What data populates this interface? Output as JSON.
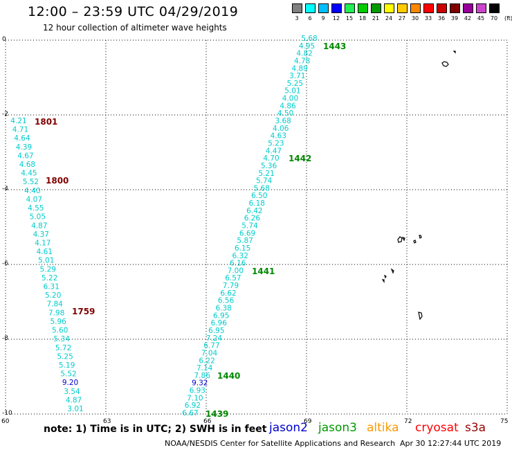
{
  "header": {
    "title": "12:00 – 23:59 UTC 04/29/2019",
    "subtitle": "12 hour collection of altimeter wave heights"
  },
  "color_scale": {
    "swatches": [
      {
        "label": "3",
        "color": "#808080"
      },
      {
        "label": "6",
        "color": "#00ffff"
      },
      {
        "label": "9",
        "color": "#00bfff"
      },
      {
        "label": "12",
        "color": "#0000ff"
      },
      {
        "label": "15",
        "color": "#22ee55"
      },
      {
        "label": "18",
        "color": "#00cc00"
      },
      {
        "label": "21",
        "color": "#009900"
      },
      {
        "label": "24",
        "color": "#ffff00"
      },
      {
        "label": "27",
        "color": "#ffcc00"
      },
      {
        "label": "30",
        "color": "#ff8800"
      },
      {
        "label": "33",
        "color": "#ff0000"
      },
      {
        "label": "36",
        "color": "#cc0000"
      },
      {
        "label": "39",
        "color": "#800000"
      },
      {
        "label": "42",
        "color": "#990099"
      },
      {
        "label": "45",
        "color": "#cc44cc"
      },
      {
        "label": "70",
        "color": "#000000"
      }
    ],
    "unit": "(ft)"
  },
  "axes": {
    "lat_labels": [
      "0",
      "-2",
      "-4",
      "-6",
      "-8",
      "-10"
    ],
    "lon_labels": [
      "60",
      "63",
      "66",
      "69",
      "72",
      "75"
    ]
  },
  "colors": {
    "cyan": "#00cccc",
    "blue": "#0000cc",
    "green": "#008800",
    "darkred": "#800000"
  },
  "tracks": [
    {
      "name": "eastern-track",
      "values": [
        "5.68",
        "4.95",
        "4.82",
        "4.78",
        "4.89",
        "3.71",
        "5.25",
        "5.01",
        "4.00",
        "4.86",
        "4.50",
        "3.68",
        "4.06",
        "4.63",
        "5.23",
        "4.47",
        "4.70",
        "5.36",
        "5.21",
        "5.74",
        "5.68",
        "6.50",
        "6.18",
        "6.42",
        "6.26",
        "5.74",
        "6.69",
        "5.87",
        "6.15",
        "6.32",
        "6.16",
        "7.00",
        "6.57",
        "7.79",
        "6.62",
        "6.56",
        "6.38",
        "6.95",
        "6.96",
        "6.95",
        "7.24",
        "6.77",
        "7.04",
        "6.22",
        "7.14",
        "7.86",
        "9.32",
        "6.93",
        "7.10",
        "6.92",
        "6.67"
      ],
      "blue_indexes": [
        46
      ],
      "times": [
        {
          "text": "1443",
          "color": "green"
        },
        {
          "text": "1442",
          "color": "green"
        },
        {
          "text": "1441",
          "color": "green"
        },
        {
          "text": "1440",
          "color": "green"
        },
        {
          "text": "1439",
          "color": "green"
        }
      ]
    },
    {
      "name": "western-track",
      "values": [
        "4.21",
        "4.71",
        "4.64",
        "4.39",
        "4.67",
        "4.68",
        "4.45",
        "5.52",
        "4.40",
        "4.07",
        "4.55",
        "5.05",
        "4.87",
        "4.37",
        "4.17",
        "4.61",
        "5.01",
        "5.29",
        "5.22",
        "6.31",
        "5.20",
        "7.84",
        "7.98",
        "5.96",
        "5.60",
        "5.34",
        "5.72",
        "5.25",
        "5.19",
        "5.52",
        "9.20",
        "3.54",
        "4.87",
        "3.01"
      ],
      "blue_indexes": [
        30
      ],
      "times": [
        {
          "text": "1801",
          "color": "darkred"
        },
        {
          "text": "1800",
          "color": "darkred"
        },
        {
          "text": "1759",
          "color": "darkred"
        }
      ]
    }
  ],
  "footer": {
    "note": "note: 1) Time is in UTC; 2) SWH is in feet",
    "legend": [
      {
        "text": "jason2",
        "color": "#0000cc"
      },
      {
        "text": "jason3",
        "color": "#009900"
      },
      {
        "text": "altika",
        "color": "#ff9900"
      },
      {
        "text": "cryosat",
        "color": "#ff0000"
      },
      {
        "text": "s3a",
        "color": "#990000"
      }
    ],
    "credit": "NOAA/NESDIS Center for Satellite Applications and Research",
    "timestamp": "Apr 30 12:27:44 UTC 2019"
  }
}
